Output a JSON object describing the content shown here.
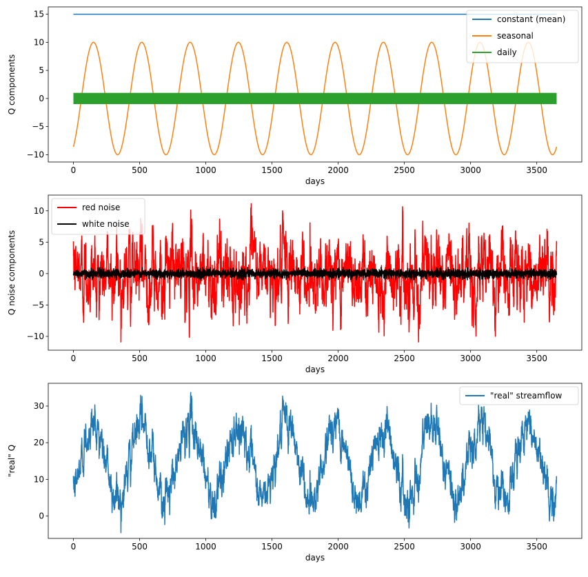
{
  "chart_data": [
    {
      "type": "line",
      "xlabel": "days",
      "ylabel": "Q components",
      "xlim": [
        -190,
        3840
      ],
      "ylim": [
        -11.3,
        16.3
      ],
      "xticks": [
        0,
        500,
        1000,
        1500,
        2000,
        2500,
        3000,
        3500
      ],
      "yticks": [
        -10,
        -5,
        0,
        5,
        10,
        15
      ],
      "legend_position": "top-right",
      "series": [
        {
          "name": "constant (mean)",
          "color": "#1f77b4",
          "kind": "constant",
          "value": 15
        },
        {
          "name": "seasonal",
          "color": "#ff7f0e",
          "kind": "sine",
          "amplitude": 10,
          "period_days": 365,
          "phase_start_value": -8.6
        },
        {
          "name": "daily",
          "color": "#2ca02c",
          "kind": "dense-band",
          "amplitude": 1
        }
      ]
    },
    {
      "type": "line",
      "xlabel": "days",
      "ylabel": "Q noise components",
      "xlim": [
        -190,
        3840
      ],
      "ylim": [
        -12.2,
        12.5
      ],
      "xticks": [
        0,
        500,
        1000,
        1500,
        2000,
        2500,
        3000,
        3500
      ],
      "yticks": [
        -10,
        -5,
        0,
        5,
        10
      ],
      "legend_position": "top-left",
      "series": [
        {
          "name": "red noise",
          "color": "#ff0000",
          "kind": "red-noise",
          "min": -10.9,
          "max": 11.6,
          "typical_range": [
            -6,
            6
          ]
        },
        {
          "name": "white noise",
          "color": "#000000",
          "kind": "white-noise",
          "min": -1,
          "max": 1
        }
      ]
    },
    {
      "type": "line",
      "xlabel": "days",
      "ylabel": "\"real\" Q",
      "xlim": [
        -190,
        3840
      ],
      "ylim": [
        -6.1,
        36.2
      ],
      "xticks": [
        0,
        500,
        1000,
        1500,
        2000,
        2500,
        3000,
        3500
      ],
      "yticks": [
        0,
        10,
        20,
        30
      ],
      "legend_position": "top-right",
      "series": [
        {
          "name": "\"real\" streamflow",
          "color": "#1f77b4",
          "kind": "composite",
          "mean": 15,
          "seasonal_amplitude": 10,
          "min": -4.4,
          "max": 34.2
        }
      ]
    }
  ]
}
